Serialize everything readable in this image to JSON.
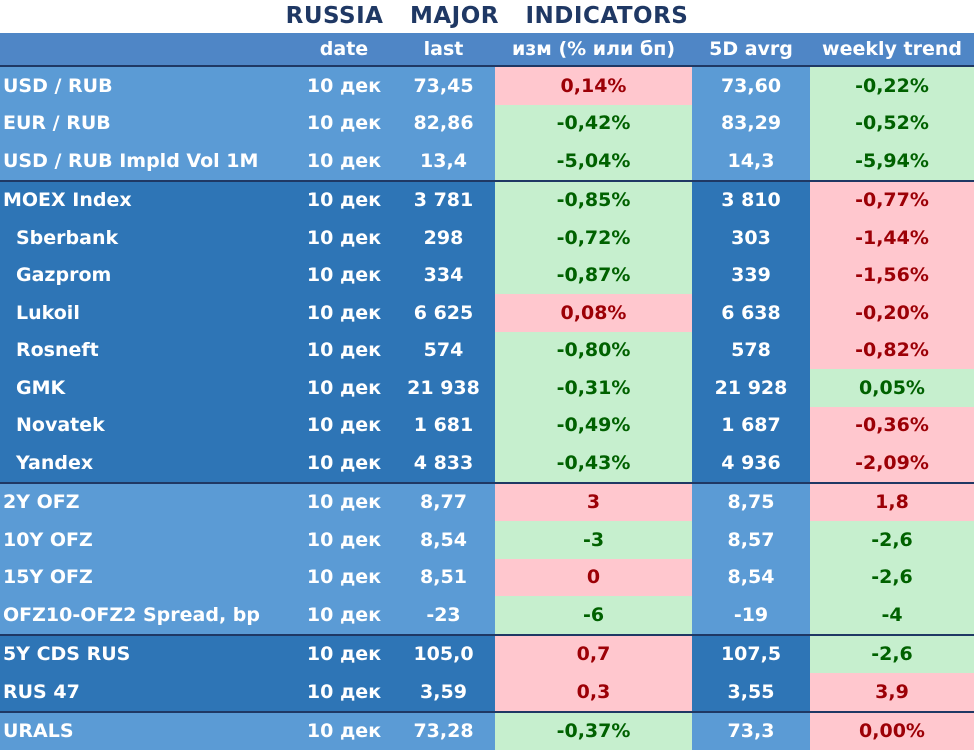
{
  "title": "RUSSIA   MAJOR   INDICATORS",
  "headers": [
    "",
    "date",
    "last",
    "изм (% или бп)",
    "5D avrg",
    "weekly trend"
  ],
  "colors": {
    "up": "#ffc7ce",
    "down": "#c6efce",
    "blue_light": "#5b9bd5",
    "blue_dark": "#2e75b6"
  },
  "rows": [
    {
      "name": "USD / RUB",
      "date": "10 дек",
      "last": "73,45",
      "chg": "0,14%",
      "avg": "73,60",
      "trend": "-0,22%"
    },
    {
      "name": "EUR / RUB",
      "date": "10 дек",
      "last": "82,86",
      "chg": "-0,42%",
      "avg": "83,29",
      "trend": "-0,52%"
    },
    {
      "name": "USD / RUB Impld Vol 1M",
      "date": "10 дек",
      "last": "13,4",
      "chg": "-5,04%",
      "avg": "14,3",
      "trend": "-5,94%"
    },
    {
      "name": "MOEX Index",
      "date": "10 дек",
      "last": "3 781",
      "chg": "-0,85%",
      "avg": "3 810",
      "trend": "-0,77%"
    },
    {
      "name": "Sberbank",
      "date": "10 дек",
      "last": "298",
      "chg": "-0,72%",
      "avg": "303",
      "trend": "-1,44%"
    },
    {
      "name": "Gazprom",
      "date": "10 дек",
      "last": "334",
      "chg": "-0,87%",
      "avg": "339",
      "trend": "-1,56%"
    },
    {
      "name": "Lukoil",
      "date": "10 дек",
      "last": "6 625",
      "chg": "0,08%",
      "avg": "6 638",
      "trend": "-0,20%"
    },
    {
      "name": "Rosneft",
      "date": "10 дек",
      "last": "574",
      "chg": "-0,80%",
      "avg": "578",
      "trend": "-0,82%"
    },
    {
      "name": "GMK",
      "date": "10 дек",
      "last": "21 938",
      "chg": "-0,31%",
      "avg": "21 928",
      "trend": "0,05%"
    },
    {
      "name": "Novatek",
      "date": "10 дек",
      "last": "1 681",
      "chg": "-0,49%",
      "avg": "1 687",
      "trend": "-0,36%"
    },
    {
      "name": "Yandex",
      "date": "10 дек",
      "last": "4 833",
      "chg": "-0,43%",
      "avg": "4 936",
      "trend": "-2,09%"
    },
    {
      "name": "2Y OFZ",
      "date": "10 дек",
      "last": "8,77",
      "chg": "3",
      "avg": "8,75",
      "trend": "1,8"
    },
    {
      "name": "10Y OFZ",
      "date": "10 дек",
      "last": "8,54",
      "chg": "-3",
      "avg": "8,57",
      "trend": "-2,6"
    },
    {
      "name": "15Y OFZ",
      "date": "10 дек",
      "last": "8,51",
      "chg": "0",
      "avg": "8,54",
      "trend": "-2,6"
    },
    {
      "name": "OFZ10-OFZ2 Spread, bp",
      "date": "10 дек",
      "last": "-23",
      "chg": "-6",
      "avg": "-19",
      "trend": "-4"
    },
    {
      "name": "5Y CDS RUS",
      "date": "10 дек",
      "last": "105,0",
      "chg": "0,7",
      "avg": "107,5",
      "trend": "-2,6"
    },
    {
      "name": "RUS 47",
      "date": "10 дек",
      "last": "3,59",
      "chg": "0,3",
      "avg": "3,55",
      "trend": "3,9"
    },
    {
      "name": "URALS",
      "date": "10 дек",
      "last": "73,28",
      "chg": "-0,37%",
      "avg": "73,3",
      "trend": "0,00%"
    }
  ]
}
